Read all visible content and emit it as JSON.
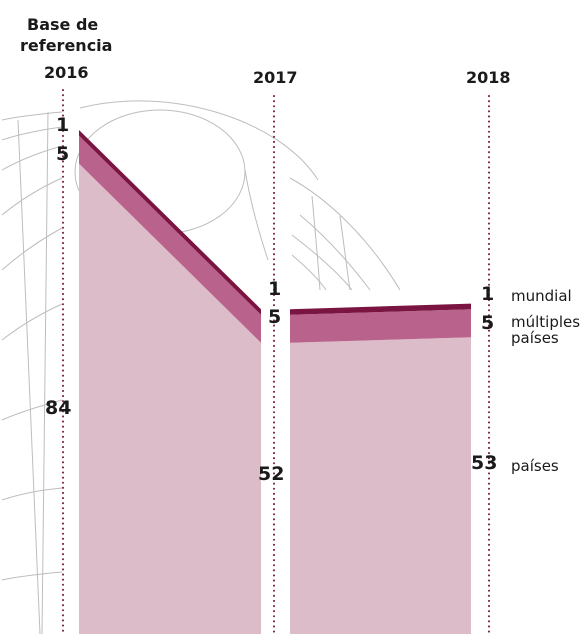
{
  "header": {
    "line1": "Base de",
    "line2": "referencia"
  },
  "years": [
    "2016",
    "2017",
    "2018"
  ],
  "value_labels": {
    "2016": {
      "mundial": "1",
      "multiples": "5",
      "paises": "84"
    },
    "2017": {
      "mundial": "1",
      "multiples": "5",
      "paises": "52"
    },
    "2018": {
      "mundial": "1",
      "multiples": "5",
      "paises": "53"
    }
  },
  "categories": {
    "mundial": "mundial",
    "multiples_line1": "múltiples",
    "multiples_line2": "países",
    "paises": "países"
  },
  "colors": {
    "mundial": "#7a1440",
    "multiples": "#b8628c",
    "paises": "#dcbcc8",
    "guide": "#7a1a3a",
    "globe": "#bdbdbd"
  },
  "chart_data": {
    "type": "area",
    "x": [
      "2016",
      "2017",
      "2018"
    ],
    "stacked": true,
    "series": [
      {
        "name": "países",
        "values": [
          84,
          52,
          53
        ]
      },
      {
        "name": "múltiples países",
        "values": [
          5,
          5,
          5
        ]
      },
      {
        "name": "mundial",
        "values": [
          1,
          1,
          1
        ]
      }
    ],
    "title": "",
    "xlabel": "",
    "ylabel": "",
    "grid": false
  }
}
